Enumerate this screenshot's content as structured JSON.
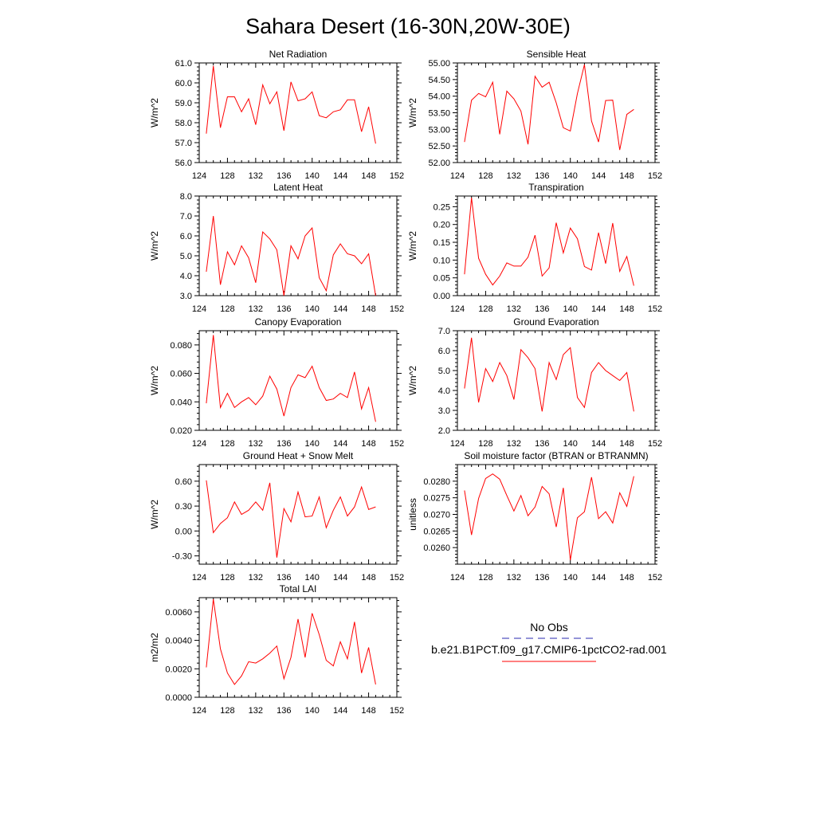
{
  "title": "Sahara Desert (16-30N,20W-30E)",
  "legend": {
    "obs_label": "No Obs",
    "obs_color": "#2a2ab0",
    "model_label": "b.e21.B1PCT.f09_g17.CMIP6-1pctCO2-rad.001",
    "model_color": "#ff0000"
  },
  "chart_data": [
    {
      "type": "line",
      "title": "Net Radiation",
      "ylabel": "W/m^2",
      "xlim": [
        124,
        152
      ],
      "xticks": [
        "124",
        "128",
        "132",
        "136",
        "140",
        "144",
        "148",
        "152"
      ],
      "ylim": [
        56.0,
        61.0
      ],
      "yticks": [
        "56.0",
        "57.0",
        "58.0",
        "59.0",
        "60.0",
        "61.0"
      ],
      "x": [
        125,
        126,
        127,
        128,
        129,
        130,
        131,
        132,
        133,
        134,
        135,
        136,
        137,
        138,
        139,
        140,
        141,
        142,
        143,
        144,
        145,
        146,
        147,
        148,
        149
      ],
      "series": [
        {
          "values": [
            57.45,
            60.85,
            57.75,
            59.3,
            59.3,
            58.55,
            59.2,
            57.9,
            59.9,
            58.95,
            59.55,
            57.6,
            60.05,
            59.1,
            59.2,
            59.55,
            58.35,
            58.25,
            58.55,
            58.65,
            59.15,
            59.15,
            57.55,
            58.8,
            56.95
          ]
        }
      ]
    },
    {
      "type": "line",
      "title": "Sensible Heat",
      "ylabel": "W/m^2",
      "xlim": [
        124,
        152
      ],
      "xticks": [
        "124",
        "128",
        "132",
        "136",
        "140",
        "144",
        "148",
        "152"
      ],
      "ylim": [
        52.0,
        55.0
      ],
      "yticks": [
        "52.00",
        "52.50",
        "53.00",
        "53.50",
        "54.00",
        "54.50",
        "55.00"
      ],
      "x": [
        125,
        126,
        127,
        128,
        129,
        130,
        131,
        132,
        133,
        134,
        135,
        136,
        137,
        138,
        139,
        140,
        141,
        142,
        143,
        144,
        145,
        146,
        147,
        148,
        149
      ],
      "series": [
        {
          "values": [
            52.62,
            53.88,
            54.08,
            53.98,
            54.42,
            52.85,
            54.15,
            53.92,
            53.55,
            52.55,
            54.6,
            54.27,
            54.42,
            53.8,
            53.05,
            52.95,
            54.08,
            54.95,
            53.25,
            52.62,
            53.87,
            53.88,
            52.38,
            53.45,
            53.6
          ]
        }
      ]
    },
    {
      "type": "line",
      "title": "Latent Heat",
      "ylabel": "W/m^2",
      "xlim": [
        124,
        152
      ],
      "xticks": [
        "124",
        "128",
        "132",
        "136",
        "140",
        "144",
        "148",
        "152"
      ],
      "ylim": [
        3.0,
        8.0
      ],
      "yticks": [
        "3.0",
        "4.0",
        "5.0",
        "6.0",
        "7.0",
        "8.0"
      ],
      "x": [
        125,
        126,
        127,
        128,
        129,
        130,
        131,
        132,
        133,
        134,
        135,
        136,
        137,
        138,
        139,
        140,
        141,
        142,
        143,
        144,
        145,
        146,
        147,
        148,
        149
      ],
      "series": [
        {
          "values": [
            4.2,
            7.0,
            3.55,
            5.2,
            4.55,
            5.5,
            4.9,
            3.65,
            6.2,
            5.85,
            5.3,
            3.0,
            5.5,
            4.85,
            6.0,
            6.4,
            3.9,
            3.25,
            5.05,
            5.6,
            5.1,
            5.0,
            4.6,
            5.1,
            3.0
          ]
        }
      ]
    },
    {
      "type": "line",
      "title": "Transpiration",
      "ylabel": "W/m^2",
      "xlim": [
        124,
        152
      ],
      "xticks": [
        "124",
        "128",
        "132",
        "136",
        "140",
        "144",
        "148",
        "152"
      ],
      "ylim": [
        0.0,
        0.28
      ],
      "yticks": [
        "0.00",
        "0.05",
        "0.10",
        "0.15",
        "0.20",
        "0.25"
      ],
      "x": [
        125,
        126,
        127,
        128,
        129,
        130,
        131,
        132,
        133,
        134,
        135,
        136,
        137,
        138,
        139,
        140,
        141,
        142,
        143,
        144,
        145,
        146,
        147,
        148,
        149
      ],
      "series": [
        {
          "values": [
            0.06,
            0.275,
            0.105,
            0.06,
            0.03,
            0.055,
            0.092,
            0.083,
            0.083,
            0.108,
            0.17,
            0.055,
            0.078,
            0.205,
            0.12,
            0.19,
            0.16,
            0.082,
            0.072,
            0.177,
            0.09,
            0.204,
            0.068,
            0.11,
            0.028
          ]
        }
      ]
    },
    {
      "type": "line",
      "title": "Canopy Evaporation",
      "ylabel": "W/m^2",
      "xlim": [
        124,
        152
      ],
      "xticks": [
        "124",
        "128",
        "132",
        "136",
        "140",
        "144",
        "148",
        "152"
      ],
      "ylim": [
        0.02,
        0.09
      ],
      "yticks": [
        "0.020",
        "0.040",
        "0.060",
        "0.080"
      ],
      "x": [
        125,
        126,
        127,
        128,
        129,
        130,
        131,
        132,
        133,
        134,
        135,
        136,
        137,
        138,
        139,
        140,
        141,
        142,
        143,
        144,
        145,
        146,
        147,
        148,
        149
      ],
      "series": [
        {
          "values": [
            0.039,
            0.087,
            0.036,
            0.046,
            0.036,
            0.04,
            0.043,
            0.038,
            0.044,
            0.058,
            0.049,
            0.03,
            0.05,
            0.059,
            0.057,
            0.065,
            0.05,
            0.041,
            0.042,
            0.046,
            0.043,
            0.061,
            0.035,
            0.05,
            0.026
          ]
        }
      ]
    },
    {
      "type": "line",
      "title": "Ground Evaporation",
      "ylabel": "W/m^2",
      "xlim": [
        124,
        152
      ],
      "xticks": [
        "124",
        "128",
        "132",
        "136",
        "140",
        "144",
        "148",
        "152"
      ],
      "ylim": [
        2.0,
        7.0
      ],
      "yticks": [
        "2.0",
        "3.0",
        "4.0",
        "5.0",
        "6.0",
        "7.0"
      ],
      "x": [
        125,
        126,
        127,
        128,
        129,
        130,
        131,
        132,
        133,
        134,
        135,
        136,
        137,
        138,
        139,
        140,
        141,
        142,
        143,
        144,
        145,
        146,
        147,
        148,
        149
      ],
      "series": [
        {
          "values": [
            4.1,
            6.65,
            3.4,
            5.1,
            4.45,
            5.4,
            4.75,
            3.55,
            6.05,
            5.65,
            5.1,
            2.95,
            5.4,
            4.55,
            5.8,
            6.15,
            3.65,
            3.15,
            4.9,
            5.4,
            5.0,
            4.75,
            4.5,
            4.9,
            2.95
          ]
        }
      ]
    },
    {
      "type": "line",
      "title": "Ground Heat + Snow Melt",
      "ylabel": "W/m^2",
      "xlim": [
        124,
        152
      ],
      "xticks": [
        "124",
        "128",
        "132",
        "136",
        "140",
        "144",
        "148",
        "152"
      ],
      "ylim": [
        -0.4,
        0.8
      ],
      "yticks": [
        "-0.30",
        "0.00",
        "0.30",
        "0.60"
      ],
      "x": [
        125,
        126,
        127,
        128,
        129,
        130,
        131,
        132,
        133,
        134,
        135,
        136,
        137,
        138,
        139,
        140,
        141,
        142,
        143,
        144,
        145,
        146,
        147,
        148,
        149
      ],
      "series": [
        {
          "values": [
            0.61,
            -0.02,
            0.09,
            0.16,
            0.35,
            0.2,
            0.25,
            0.35,
            0.25,
            0.58,
            -0.32,
            0.27,
            0.11,
            0.47,
            0.17,
            0.18,
            0.41,
            0.04,
            0.25,
            0.41,
            0.18,
            0.29,
            0.53,
            0.26,
            0.29
          ]
        }
      ]
    },
    {
      "type": "line",
      "title": "Soil moisture factor (BTRAN or BTRANMN)",
      "ylabel": "unitless",
      "xlim": [
        124,
        152
      ],
      "xticks": [
        "124",
        "128",
        "132",
        "136",
        "140",
        "144",
        "148",
        "152"
      ],
      "ylim": [
        0.0255,
        0.0285
      ],
      "yticks": [
        "0.0260",
        "0.0265",
        "0.0270",
        "0.0275",
        "0.0280"
      ],
      "x": [
        125,
        126,
        127,
        128,
        129,
        130,
        131,
        132,
        133,
        134,
        135,
        136,
        137,
        138,
        139,
        140,
        141,
        142,
        143,
        144,
        145,
        146,
        147,
        148,
        149
      ],
      "series": [
        {
          "values": [
            0.02772,
            0.02638,
            0.02748,
            0.02808,
            0.02822,
            0.02806,
            0.02757,
            0.0271,
            0.02757,
            0.02696,
            0.02722,
            0.02784,
            0.02762,
            0.02662,
            0.0278,
            0.02562,
            0.0269,
            0.02708,
            0.02812,
            0.02687,
            0.02708,
            0.02674,
            0.02765,
            0.02724,
            0.02815
          ]
        }
      ]
    },
    {
      "type": "line",
      "title": "Total LAI",
      "ylabel": "m2/m2",
      "xlim": [
        124,
        152
      ],
      "xticks": [
        "124",
        "128",
        "132",
        "136",
        "140",
        "144",
        "148",
        "152"
      ],
      "ylim": [
        0.0,
        0.007
      ],
      "yticks": [
        "0.0000",
        "0.0020",
        "0.0040",
        "0.0060"
      ],
      "x": [
        125,
        126,
        127,
        128,
        129,
        130,
        131,
        132,
        133,
        134,
        135,
        136,
        137,
        138,
        139,
        140,
        141,
        142,
        143,
        144,
        145,
        146,
        147,
        148,
        149
      ],
      "series": [
        {
          "values": [
            0.0021,
            0.0069,
            0.0034,
            0.0017,
            0.0009,
            0.0015,
            0.0025,
            0.0024,
            0.0027,
            0.0031,
            0.0036,
            0.0013,
            0.0028,
            0.0055,
            0.0028,
            0.0059,
            0.0044,
            0.0026,
            0.0022,
            0.0039,
            0.0027,
            0.0053,
            0.0017,
            0.0035,
            0.0009
          ]
        }
      ]
    }
  ]
}
